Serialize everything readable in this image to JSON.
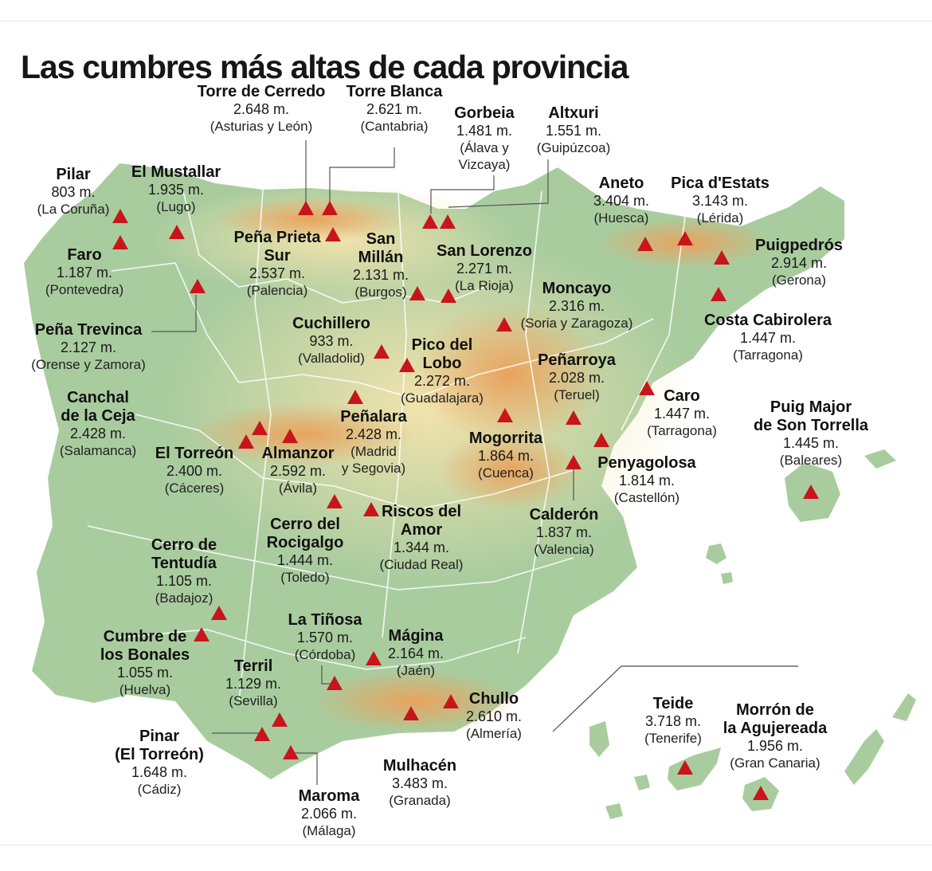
{
  "title": "Las cumbres más altas de cada provincia",
  "colors": {
    "sea": "#ffffff",
    "land_low": "#9fc79a",
    "land_mid": "#f1e4b0",
    "land_high": "#e6a15a",
    "peak_marker": "#c8151b",
    "border": "#ffffff"
  },
  "marker_icon": "triangle-peak-icon",
  "peaks": [
    {
      "name": [
        "Torre de Cerredo"
      ],
      "elevation": "2.648 m.",
      "province": [
        "(Asturias y León)"
      ]
    },
    {
      "name": [
        "Torre Blanca"
      ],
      "elevation": "2.621 m.",
      "province": [
        "(Cantabria)"
      ]
    },
    {
      "name": [
        "Gorbeia"
      ],
      "elevation": "1.481 m.",
      "province": [
        "(Álava y",
        "Vizcaya)"
      ]
    },
    {
      "name": [
        "Altxuri"
      ],
      "elevation": "1.551 m.",
      "province": [
        "(Guipúzcoa)"
      ]
    },
    {
      "name": [
        "Pilar"
      ],
      "elevation": "803 m.",
      "province": [
        "(La Coruña)"
      ]
    },
    {
      "name": [
        "El Mustallar"
      ],
      "elevation": "1.935 m.",
      "province": [
        "(Lugo)"
      ]
    },
    {
      "name": [
        "Aneto"
      ],
      "elevation": "3.404 m.",
      "province": [
        "(Huesca)"
      ]
    },
    {
      "name": [
        "Pica d'Estats"
      ],
      "elevation": "3.143 m.",
      "province": [
        "(Lérida)"
      ]
    },
    {
      "name": [
        "Peña Prieta",
        "Sur"
      ],
      "elevation": "2.537 m.",
      "province": [
        "(Palencia)"
      ]
    },
    {
      "name": [
        "San",
        "Millán"
      ],
      "elevation": "2.131 m.",
      "province": [
        "(Burgos)"
      ]
    },
    {
      "name": [
        "San Lorenzo"
      ],
      "elevation": "2.271 m.",
      "province": [
        "(La Rioja)"
      ]
    },
    {
      "name": [
        "Faro"
      ],
      "elevation": "1.187 m.",
      "province": [
        "(Pontevedra)"
      ]
    },
    {
      "name": [
        "Puigpedrós"
      ],
      "elevation": "2.914 m.",
      "province": [
        "(Gerona)"
      ]
    },
    {
      "name": [
        "Moncayo"
      ],
      "elevation": "2.316 m.",
      "province": [
        "(Soria y Zaragoza)"
      ]
    },
    {
      "name": [
        "Costa Cabirolera"
      ],
      "elevation": "1.447 m.",
      "province": [
        "(Tarragona)"
      ]
    },
    {
      "name": [
        "Peña Trevinca"
      ],
      "elevation": "2.127 m.",
      "province": [
        "(Orense y Zamora)"
      ]
    },
    {
      "name": [
        "Cuchillero"
      ],
      "elevation": "933 m.",
      "province": [
        "(Valladolid)"
      ]
    },
    {
      "name": [
        "Pico del",
        "Lobo"
      ],
      "elevation": "2.272 m.",
      "province": [
        "(Guadalajara)"
      ]
    },
    {
      "name": [
        "Peñarroya"
      ],
      "elevation": "2.028 m.",
      "province": [
        "(Teruel)"
      ]
    },
    {
      "name": [
        "Caro"
      ],
      "elevation": "1.447 m.",
      "province": [
        "(Tarragona)"
      ]
    },
    {
      "name": [
        "Canchal",
        "de la Ceja"
      ],
      "elevation": "2.428 m.",
      "province": [
        "(Salamanca)"
      ]
    },
    {
      "name": [
        "Peñalara"
      ],
      "elevation": "2.428 m.",
      "province": [
        "(Madrid",
        "y Segovia)"
      ]
    },
    {
      "name": [
        "Puig Major",
        "de Son Torrella"
      ],
      "elevation": "1.445 m.",
      "province": [
        "(Baleares)"
      ]
    },
    {
      "name": [
        "Mogorrita"
      ],
      "elevation": "1.864 m.",
      "province": [
        "(Cuenca)"
      ]
    },
    {
      "name": [
        "El Torreón"
      ],
      "elevation": "2.400 m.",
      "province": [
        "(Cáceres)"
      ]
    },
    {
      "name": [
        "Almanzor"
      ],
      "elevation": "2.592 m.",
      "province": [
        "(Ávila)"
      ]
    },
    {
      "name": [
        "Penyagolosa"
      ],
      "elevation": "1.814 m.",
      "province": [
        "(Castellón)"
      ]
    },
    {
      "name": [
        "Riscos del",
        "Amor"
      ],
      "elevation": "1.344 m.",
      "province": [
        "(Ciudad Real)"
      ]
    },
    {
      "name": [
        "Calderón"
      ],
      "elevation": "1.837 m.",
      "province": [
        "(Valencia)"
      ]
    },
    {
      "name": [
        "Cerro del",
        "Rocigalgo"
      ],
      "elevation": "1.444 m.",
      "province": [
        "(Toledo)"
      ]
    },
    {
      "name": [
        "Cerro de",
        "Tentudía"
      ],
      "elevation": "1.105 m.",
      "province": [
        "(Badajoz)"
      ]
    },
    {
      "name": [
        "La Tiñosa"
      ],
      "elevation": "1.570 m.",
      "province": [
        "(Córdoba)"
      ]
    },
    {
      "name": [
        "Cumbre de",
        "los Bonales"
      ],
      "elevation": "1.055 m.",
      "province": [
        "(Huelva)"
      ]
    },
    {
      "name": [
        "Mágina"
      ],
      "elevation": "2.164 m.",
      "province": [
        "(Jaén)"
      ]
    },
    {
      "name": [
        "Terril"
      ],
      "elevation": "1.129 m.",
      "province": [
        "(Sevilla)"
      ]
    },
    {
      "name": [
        "Chullo"
      ],
      "elevation": "2.610 m.",
      "province": [
        "(Almería)"
      ]
    },
    {
      "name": [
        "Teide"
      ],
      "elevation": "3.718 m.",
      "province": [
        "(Tenerife)"
      ]
    },
    {
      "name": [
        "Morrón de",
        "la Agujereada"
      ],
      "elevation": "1.956 m.",
      "province": [
        "(Gran Canaria)"
      ]
    },
    {
      "name": [
        "Pinar",
        "(El Torreón)"
      ],
      "elevation": "1.648 m.",
      "province": [
        "(Cádiz)"
      ]
    },
    {
      "name": [
        "Mulhacén"
      ],
      "elevation": "3.483 m.",
      "province": [
        "(Granada)"
      ]
    },
    {
      "name": [
        "Maroma"
      ],
      "elevation": "2.066 m.",
      "province": [
        "(Málaga)"
      ]
    }
  ]
}
